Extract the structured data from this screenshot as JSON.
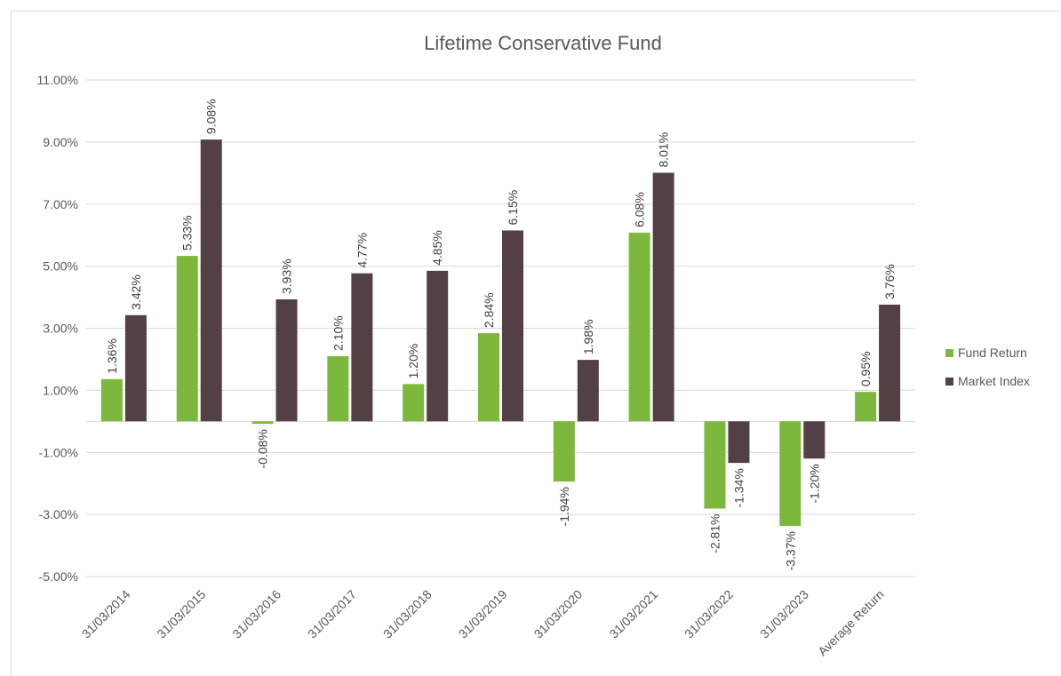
{
  "chart_data": {
    "type": "bar",
    "title": "Lifetime Conservative Fund",
    "categories": [
      "31/03/2014",
      "31/03/2015",
      "31/03/2016",
      "31/03/2017",
      "31/03/2018",
      "31/03/2019",
      "31/03/2020",
      "31/03/2021",
      "31/03/2022",
      "31/03/2023",
      "Average Return"
    ],
    "series": [
      {
        "name": "Fund Return",
        "color": "#7cb83c",
        "values": [
          1.36,
          5.33,
          -0.08,
          2.1,
          1.2,
          2.84,
          -1.94,
          6.08,
          -2.81,
          -3.37,
          0.95
        ],
        "labels": [
          "1.36%",
          "5.33%",
          "-0.08%",
          "2.10%",
          "1.20%",
          "2.84%",
          "-1.94%",
          "6.08%",
          "-2.81%",
          "-3.37%",
          "0.95%"
        ]
      },
      {
        "name": "Market Index",
        "color": "#524045",
        "values": [
          3.42,
          9.08,
          3.93,
          4.77,
          4.85,
          6.15,
          1.98,
          8.01,
          -1.34,
          -1.2,
          3.76
        ],
        "labels": [
          "3.42%",
          "9.08%",
          "3.93%",
          "4.77%",
          "4.85%",
          "6.15%",
          "1.98%",
          "8.01%",
          "-1.34%",
          "-1.20%",
          "3.76%"
        ]
      }
    ],
    "yticks": [
      11,
      9,
      7,
      5,
      3,
      1,
      -1,
      -3,
      -5
    ],
    "ytick_labels": [
      "11.00%",
      "9.00%",
      "7.00%",
      "5.00%",
      "3.00%",
      "1.00%",
      "-1.00%",
      "-3.00%",
      "-5.00%"
    ],
    "ylim": [
      -5,
      11
    ],
    "xlabel": "",
    "ylabel": "",
    "grid": true,
    "gridline_color": "#d9d9d9",
    "legend_position": "right"
  }
}
